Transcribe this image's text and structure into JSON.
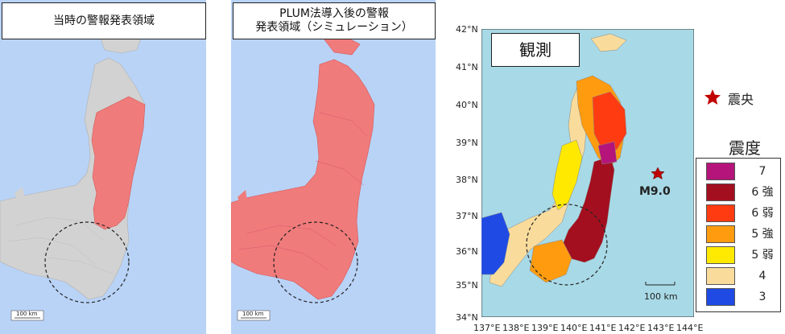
{
  "panels": {
    "left_title": "当時の警報発表領域",
    "middle_title_line1": "PLUM法導入後の警報",
    "middle_title_line2": "発表領域（シミュレーション）",
    "right_title": "観測",
    "scale_left": "100 km",
    "scale_middle": "100 km",
    "scale_right": "100 km"
  },
  "epicenter": {
    "label": "震央",
    "magnitude": "M9.0",
    "lon": 142.9,
    "lat": 38.1,
    "star_color": "#c00000"
  },
  "axes": {
    "lat_labels": [
      "42°N",
      "41°N",
      "40°N",
      "39°N",
      "38°N",
      "37°N",
      "36°N",
      "35°N",
      "34°N"
    ],
    "lon_labels": [
      "137°E",
      "138°E",
      "139°E",
      "140°E",
      "141°E",
      "142°E",
      "143°E",
      "144°E"
    ]
  },
  "legend": {
    "title": "震度",
    "items": [
      {
        "label": "7",
        "color": "#b5147a"
      },
      {
        "label": "6 強",
        "color": "#a30f1f"
      },
      {
        "label": "6 弱",
        "color": "#ff3b12"
      },
      {
        "label": "5 強",
        "color": "#ff9b0f"
      },
      {
        "label": "5 弱",
        "color": "#ffe900"
      },
      {
        "label": "4",
        "color": "#f9dc9c"
      },
      {
        "label": "3",
        "color": "#1f4be4"
      }
    ]
  },
  "colors": {
    "sea_map": "#b9d3f7",
    "sea_obs": "#a8d9e6",
    "warning_red": "#f07b7b",
    "land_gray": "#d2d2d2"
  }
}
